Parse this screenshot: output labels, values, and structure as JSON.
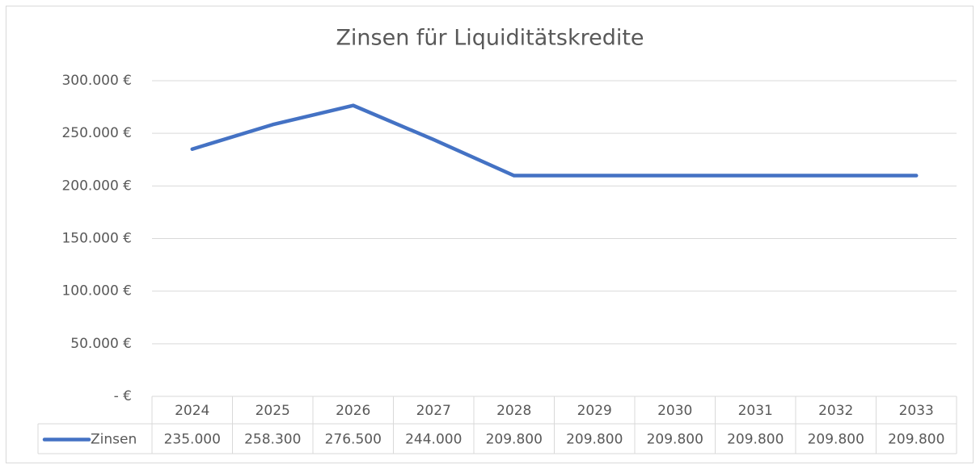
{
  "chart_data": {
    "type": "line",
    "title": "Zinsen für Liquiditätskredite",
    "categories": [
      "2024",
      "2025",
      "2026",
      "2027",
      "2028",
      "2029",
      "2030",
      "2031",
      "2032",
      "2033"
    ],
    "series": [
      {
        "name": "Zinsen",
        "color": "#4472c4",
        "values": [
          235000,
          258300,
          276500,
          244000,
          209800,
          209800,
          209800,
          209800,
          209800,
          209800
        ],
        "value_labels": [
          "235.000",
          "258.300",
          "276.500",
          "244.000",
          "209.800",
          "209.800",
          "209.800",
          "209.800",
          "209.800",
          "209.800"
        ]
      }
    ],
    "ylim": [
      0,
      300000
    ],
    "yticks": [
      {
        "value": 0,
        "label": "-   €"
      },
      {
        "value": 50000,
        "label": "50.000 €"
      },
      {
        "value": 100000,
        "label": "100.000 €"
      },
      {
        "value": 150000,
        "label": "150.000 €"
      },
      {
        "value": 200000,
        "label": "200.000 €"
      },
      {
        "value": 250000,
        "label": "250.000 €"
      },
      {
        "value": 300000,
        "label": "300.000 €"
      }
    ],
    "grid": true,
    "data_table": true
  }
}
